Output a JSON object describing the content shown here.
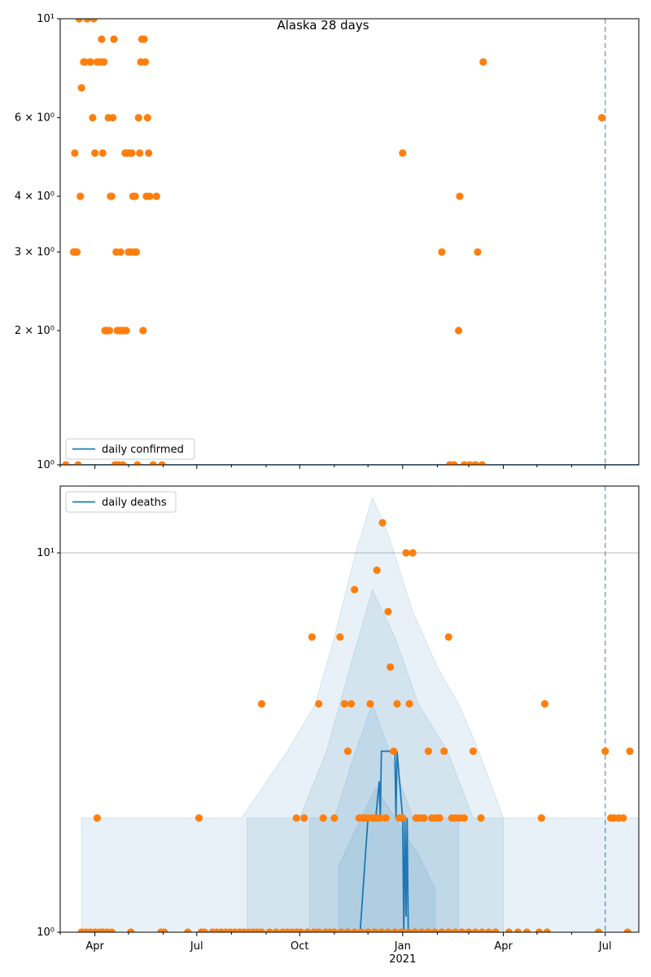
{
  "chart_data": [
    {
      "type": "scatter",
      "title": "Alaska 28 days",
      "x_axis": "date",
      "x_range": [
        "2020-03-01",
        "2021-07-31"
      ],
      "y_scale": "log",
      "ylim": [
        1,
        10
      ],
      "y_ticks": [
        {
          "value": 1,
          "label": "10⁰"
        },
        {
          "value": 2,
          "label": "2 × 10⁰"
        },
        {
          "value": 3,
          "label": "3 × 10⁰"
        },
        {
          "value": 4,
          "label": "4 × 10⁰"
        },
        {
          "value": 6,
          "label": "6 × 10⁰"
        },
        {
          "value": 10,
          "label": "10¹"
        }
      ],
      "vline_date": "2021-07-01",
      "legend": {
        "position": "bottom-left",
        "entries": [
          "daily confirmed"
        ]
      },
      "series": [
        {
          "name": "daily confirmed",
          "kind": "line",
          "x": [
            "2020-03-01",
            "2021-07-31"
          ],
          "y": [
            1,
            1
          ]
        },
        {
          "kind": "points",
          "x": [
            "2020-03-06",
            "2020-03-13",
            "2020-03-14",
            "2020-03-15",
            "2020-03-16",
            "2020-03-17",
            "2020-03-18",
            "2020-03-19",
            "2020-03-20",
            "2020-03-22",
            "2020-03-23",
            "2020-03-25",
            "2020-03-28",
            "2020-03-28",
            "2020-03-30",
            "2020-03-31",
            "2020-04-01",
            "2020-04-03",
            "2020-04-06",
            "2020-04-07",
            "2020-04-08",
            "2020-04-09",
            "2020-04-10",
            "2020-04-11",
            "2020-04-12",
            "2020-04-13",
            "2020-04-14",
            "2020-04-15",
            "2020-04-16",
            "2020-04-17",
            "2020-04-18",
            "2020-04-19",
            "2020-04-20",
            "2020-04-21",
            "2020-04-22",
            "2020-04-23",
            "2020-04-24",
            "2020-04-25",
            "2020-04-26",
            "2020-04-27",
            "2020-04-28",
            "2020-04-29",
            "2020-04-30",
            "2020-05-01",
            "2020-05-02",
            "2020-05-03",
            "2020-05-04",
            "2020-05-05",
            "2020-05-06",
            "2020-05-07",
            "2020-05-08",
            "2020-05-09",
            "2020-05-10",
            "2020-05-11",
            "2020-05-12",
            "2020-05-13",
            "2020-05-14",
            "2020-05-15",
            "2020-05-16",
            "2020-05-17",
            "2020-05-18",
            "2020-05-19",
            "2020-05-20",
            "2020-05-23",
            "2020-05-26",
            "2020-05-31",
            "2021-01-01",
            "2021-02-05",
            "2021-02-12",
            "2021-02-16",
            "2021-02-20",
            "2021-02-21",
            "2021-02-25",
            "2021-03-02",
            "2021-03-07",
            "2021-03-09",
            "2021-03-13",
            "2021-03-14",
            "2021-06-28"
          ],
          "y": [
            1,
            3,
            5,
            3,
            3,
            1,
            10,
            4,
            7,
            8,
            8,
            10,
            8,
            8,
            6,
            10,
            5,
            8,
            8,
            9,
            5,
            8,
            2,
            2,
            2,
            6,
            2,
            4,
            4,
            6,
            9,
            1,
            3,
            2,
            1,
            2,
            3,
            2,
            1,
            2,
            5,
            2,
            5,
            3,
            5,
            3,
            5,
            4,
            3,
            4,
            3,
            1,
            6,
            5,
            8,
            9,
            2,
            9,
            8,
            4,
            6,
            5,
            4,
            1,
            4,
            1,
            5,
            3,
            1,
            1,
            2,
            4,
            1,
            1,
            1,
            3,
            1,
            8,
            6
          ]
        }
      ]
    },
    {
      "type": "scatter",
      "x_axis": "date",
      "x_range": [
        "2020-03-01",
        "2021-07-31"
      ],
      "y_scale": "log",
      "ylim": [
        1,
        15
      ],
      "y_ticks": [
        {
          "value": 1,
          "label": "10⁰"
        },
        {
          "value": 10,
          "label": "10¹"
        }
      ],
      "x_ticks": [
        {
          "date": "2020-04-01",
          "label": "Apr"
        },
        {
          "date": "2020-07-01",
          "label": "Jul"
        },
        {
          "date": "2020-10-01",
          "label": "Oct"
        },
        {
          "date": "2021-01-01",
          "label": "Jan"
        },
        {
          "date": "2021-04-01",
          "label": "Apr"
        },
        {
          "date": "2021-07-01",
          "label": "Jul"
        }
      ],
      "x_year_label": "2021",
      "grid": "y-major",
      "vline_date": "2021-07-01",
      "legend": {
        "position": "top-left",
        "entries": [
          "daily deaths"
        ]
      },
      "bands": [
        {
          "x": [
            "2020-03-20",
            "2020-04-10",
            "2020-06-25",
            "2020-07-10",
            "2020-08-10",
            "2020-09-20",
            "2020-10-15",
            "2020-11-01",
            "2020-11-20",
            "2020-12-05",
            "2020-12-20",
            "2021-01-10",
            "2021-02-01",
            "2021-02-20",
            "2021-03-10",
            "2021-04-01",
            "2021-05-20",
            "2021-07-31"
          ],
          "lower": [
            1,
            1,
            1,
            1,
            1,
            1,
            1,
            1,
            1,
            1,
            1,
            1,
            1,
            1,
            1,
            1,
            1,
            1
          ],
          "upper": [
            2,
            2,
            2,
            2,
            2,
            3,
            4,
            6,
            10,
            14,
            11,
            7,
            5,
            4,
            3,
            2,
            2,
            2
          ]
        },
        {
          "x": [
            "2020-08-15",
            "2020-10-01",
            "2020-10-25",
            "2020-11-15",
            "2020-12-05",
            "2020-12-25",
            "2021-01-15",
            "2021-02-10",
            "2021-03-05",
            "2021-04-01"
          ],
          "lower": [
            1,
            1,
            1,
            1,
            1,
            1,
            1,
            1,
            1,
            1
          ],
          "upper": [
            2,
            2,
            3,
            5,
            8,
            6,
            4,
            3,
            2,
            2
          ]
        },
        {
          "x": [
            "2020-10-10",
            "2020-11-01",
            "2020-11-20",
            "2020-12-05",
            "2020-12-20",
            "2021-01-10",
            "2021-02-01",
            "2021-02-20"
          ],
          "lower": [
            1,
            1,
            1,
            1,
            1,
            1,
            1,
            1
          ],
          "upper": [
            2,
            2,
            3,
            4,
            3,
            2,
            2,
            2
          ]
        },
        {
          "x": [
            "2020-11-05",
            "2020-11-25",
            "2020-12-08",
            "2020-12-25",
            "2021-01-15",
            "2021-01-30"
          ],
          "lower": [
            1,
            1,
            1,
            1,
            1,
            1
          ],
          "upper": [
            1.5,
            2,
            2.4,
            2,
            1.6,
            1.3
          ]
        }
      ],
      "series": [
        {
          "name": "daily deaths",
          "kind": "line",
          "x": [
            "2020-11-24",
            "2020-12-01",
            "2020-12-08",
            "2020-12-11",
            "2020-12-12",
            "2020-12-13",
            "2020-12-15",
            "2020-12-20",
            "2020-12-25",
            "2020-12-26",
            "2020-12-27",
            "2021-01-01",
            "2021-01-02",
            "2021-01-03",
            "2021-01-04",
            "2021-01-05",
            "2021-01-06",
            "2021-01-07"
          ],
          "y": [
            1,
            2,
            2,
            2.5,
            2,
            3,
            3,
            3,
            3,
            2,
            3,
            2,
            1,
            2,
            1.1,
            2,
            1,
            1
          ]
        },
        {
          "kind": "points",
          "x": [
            "2020-04-03",
            "2020-05-03",
            "2020-06-23",
            "2020-07-03",
            "2020-08-28",
            "2020-09-28",
            "2020-10-05",
            "2020-10-12",
            "2020-10-18",
            "2020-10-22",
            "2020-11-01",
            "2020-11-06",
            "2020-11-10",
            "2020-11-13",
            "2020-11-16",
            "2020-11-19",
            "2020-11-23",
            "2020-11-26",
            "2020-11-28",
            "2020-12-01",
            "2020-12-03",
            "2020-12-05",
            "2020-12-07",
            "2020-12-09",
            "2020-12-10",
            "2020-12-12",
            "2020-12-14",
            "2020-12-17",
            "2020-12-19",
            "2020-12-21",
            "2020-12-24",
            "2020-12-27",
            "2020-12-29",
            "2021-01-01",
            "2021-01-04",
            "2021-01-07",
            "2021-01-10",
            "2021-01-13",
            "2021-01-17",
            "2021-01-20",
            "2021-01-24",
            "2021-01-27",
            "2021-01-31",
            "2021-02-03",
            "2021-02-07",
            "2021-02-11",
            "2021-02-14",
            "2021-02-17",
            "2021-02-21",
            "2021-02-25",
            "2021-03-05",
            "2021-03-12",
            "2021-05-05",
            "2021-05-08",
            "2021-07-01",
            "2021-07-06",
            "2021-07-09",
            "2021-07-13",
            "2021-07-17",
            "2021-07-23"
          ],
          "y": [
            2,
            1,
            1,
            2,
            4,
            2,
            2,
            6,
            4,
            2,
            2,
            6,
            4,
            3,
            4,
            8,
            2,
            2,
            2,
            2,
            4,
            2,
            2,
            9,
            2,
            2,
            12,
            2,
            7,
            5,
            3,
            4,
            2,
            2,
            10,
            4,
            10,
            2,
            2,
            2,
            3,
            2,
            2,
            2,
            3,
            6,
            2,
            2,
            2,
            2,
            3,
            2,
            2,
            4,
            3,
            2,
            2,
            2,
            2,
            3
          ]
        },
        {
          "kind": "points",
          "x": [
            "2020-03-20",
            "2020-03-24",
            "2020-03-28",
            "2020-04-01",
            "2020-04-05",
            "2020-04-08",
            "2020-04-12",
            "2020-04-16",
            "2020-05-30",
            "2020-06-02",
            "2020-07-05",
            "2020-07-08",
            "2020-07-15",
            "2020-07-19",
            "2020-07-23",
            "2020-07-27",
            "2020-07-31",
            "2020-08-04",
            "2020-08-08",
            "2020-08-12",
            "2020-08-16",
            "2020-08-20",
            "2020-08-24",
            "2020-08-28",
            "2020-09-04",
            "2020-09-10",
            "2020-09-16",
            "2020-09-20",
            "2020-09-24",
            "2020-09-28",
            "2020-10-02",
            "2020-10-08",
            "2020-10-14",
            "2020-10-18",
            "2020-10-24",
            "2020-10-28",
            "2020-11-01",
            "2020-11-07",
            "2020-11-13",
            "2020-11-19",
            "2020-11-25",
            "2020-12-01",
            "2020-12-07",
            "2020-12-13",
            "2020-12-19",
            "2020-12-25",
            "2020-12-31",
            "2021-01-06",
            "2021-01-12",
            "2021-01-18",
            "2021-01-24",
            "2021-01-30",
            "2021-02-05",
            "2021-02-11",
            "2021-02-17",
            "2021-02-23",
            "2021-03-01",
            "2021-03-07",
            "2021-03-13",
            "2021-03-19",
            "2021-03-25",
            "2021-04-06",
            "2021-04-14",
            "2021-04-22",
            "2021-05-03",
            "2021-05-10",
            "2021-06-25",
            "2021-07-21"
          ],
          "y": [
            1,
            1,
            1,
            1,
            1,
            1,
            1,
            1,
            1,
            1,
            1,
            1,
            1,
            1,
            1,
            1,
            1,
            1,
            1,
            1,
            1,
            1,
            1,
            1,
            1,
            1,
            1,
            1,
            1,
            1,
            1,
            1,
            1,
            1,
            1,
            1,
            1,
            1,
            1,
            1,
            1,
            1,
            1,
            1,
            1,
            1,
            1,
            1,
            1,
            1,
            1,
            1,
            1,
            1,
            1,
            1,
            1,
            1,
            1,
            1,
            1,
            1,
            1,
            1,
            1,
            1,
            1,
            1
          ]
        }
      ]
    }
  ],
  "colors": {
    "line": "#1f77b4",
    "points": "#ff7f0e",
    "band": "#1f77b4",
    "vline": "#1f77b4",
    "grid": "#b0b0b0"
  }
}
